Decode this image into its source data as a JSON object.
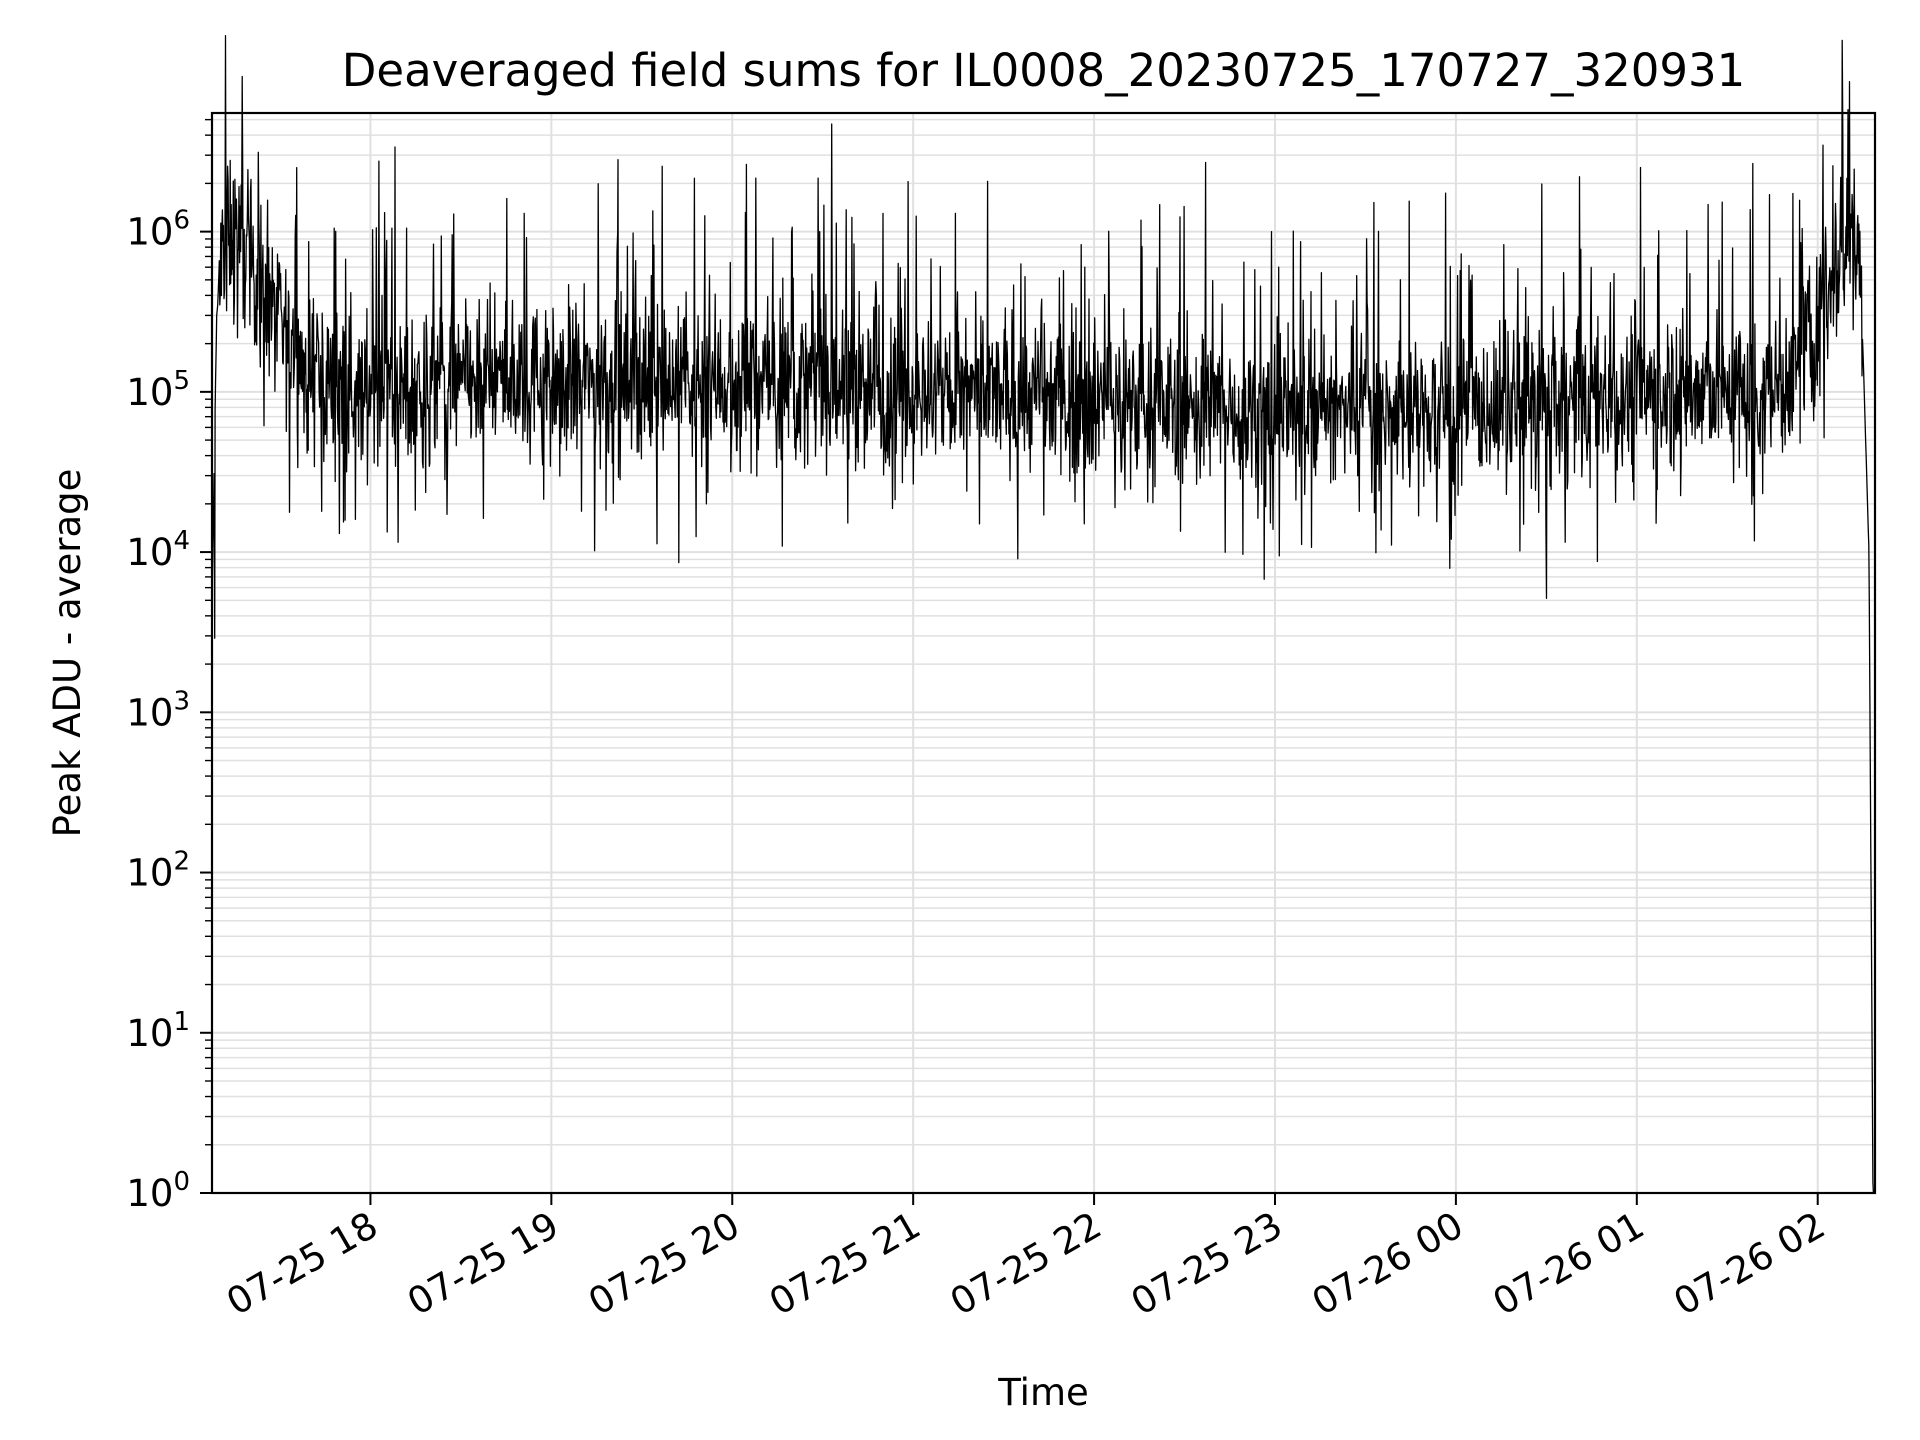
{
  "chart_data": {
    "type": "line",
    "title": "Deaveraged field sums for IL0008_20230725_170727_320931",
    "xlabel": "Time",
    "ylabel": "Peak ADU - average",
    "yscale": "log",
    "ylim": [
      1,
      5500000
    ],
    "xlim": [
      "2023-07-25 17:07:27",
      "2023-07-26 02:19:00"
    ],
    "grid": true,
    "line_color": "#000000",
    "grid_color": "#e0e0e0",
    "x_ticks": [
      {
        "label": "07-25 18",
        "value": "2023-07-25 18:00:00"
      },
      {
        "label": "07-25 19",
        "value": "2023-07-25 19:00:00"
      },
      {
        "label": "07-25 20",
        "value": "2023-07-25 20:00:00"
      },
      {
        "label": "07-25 21",
        "value": "2023-07-25 21:00:00"
      },
      {
        "label": "07-25 22",
        "value": "2023-07-25 22:00:00"
      },
      {
        "label": "07-25 23",
        "value": "2023-07-25 23:00:00"
      },
      {
        "label": "07-26 00",
        "value": "2023-07-26 00:00:00"
      },
      {
        "label": "07-26 01",
        "value": "2023-07-26 01:00:00"
      },
      {
        "label": "07-26 02",
        "value": "2023-07-26 02:00:00"
      }
    ],
    "y_ticks": [
      {
        "base": "10",
        "exp": "0",
        "value": 1
      },
      {
        "base": "10",
        "exp": "1",
        "value": 10
      },
      {
        "base": "10",
        "exp": "2",
        "value": 100
      },
      {
        "base": "10",
        "exp": "3",
        "value": 1000
      },
      {
        "base": "10",
        "exp": "4",
        "value": 10000
      },
      {
        "base": "10",
        "exp": "5",
        "value": 100000
      },
      {
        "base": "10",
        "exp": "6",
        "value": 1000000
      }
    ],
    "series": [
      {
        "baseline_profile": {
          "x": [
            "2023-07-25 17:07:27",
            "2023-07-25 17:09:00",
            "2023-07-25 17:12:00",
            "2023-07-25 17:15:00",
            "2023-07-25 17:20:00",
            "2023-07-25 17:30:00",
            "2023-07-25 17:40:00",
            "2023-07-25 18:00:00",
            "2023-07-25 19:00:00",
            "2023-07-25 20:00:00",
            "2023-07-25 21:00:00",
            "2023-07-25 22:00:00",
            "2023-07-25 23:00:00",
            "2023-07-26 00:00:00",
            "2023-07-26 01:00:00",
            "2023-07-26 01:50:00",
            "2023-07-26 02:00:00",
            "2023-07-26 02:10:00",
            "2023-07-26 02:14:00",
            "2023-07-26 02:17:00",
            "2023-07-26 02:18:20"
          ],
          "y": [
            5000,
            300000,
            1100000,
            1000000,
            700000,
            250000,
            120000,
            110000,
            120000,
            120000,
            100000,
            90000,
            75000,
            75000,
            100000,
            100000,
            300000,
            1000000,
            800000,
            10000,
            1
          ]
        },
        "noise_spread": 0.3,
        "spikes": [
          {
            "x": "2023-07-25 22:37:00",
            "y": 2700000
          },
          {
            "x": "2023-07-26 00:41:00",
            "y": 2200000
          },
          {
            "x": "2023-07-26 01:44:00",
            "y": 1700000
          },
          {
            "x": "2023-07-25 21:14:00",
            "y": 1300000
          },
          {
            "x": "2023-07-25 20:50:00",
            "y": 1300000
          },
          {
            "x": "2023-07-25 18:51:00",
            "y": 1300000
          },
          {
            "x": "2023-07-25 21:01:00",
            "y": 1250000
          },
          {
            "x": "2023-07-25 18:12:00",
            "y": 1050000
          },
          {
            "x": "2023-07-25 19:22:00",
            "y": 1000000
          },
          {
            "x": "2023-07-25 20:29:00",
            "y": 1000000
          },
          {
            "x": "2023-07-25 19:48:00",
            "y": 12500
          },
          {
            "x": "2023-07-25 17:55:00",
            "y": 16000
          },
          {
            "x": "2023-07-25 19:10:00",
            "y": 18000
          },
          {
            "x": "2023-07-25 21:22:00",
            "y": 15000
          },
          {
            "x": "2023-07-25 17:08:20",
            "y": 2900
          }
        ]
      }
    ]
  }
}
